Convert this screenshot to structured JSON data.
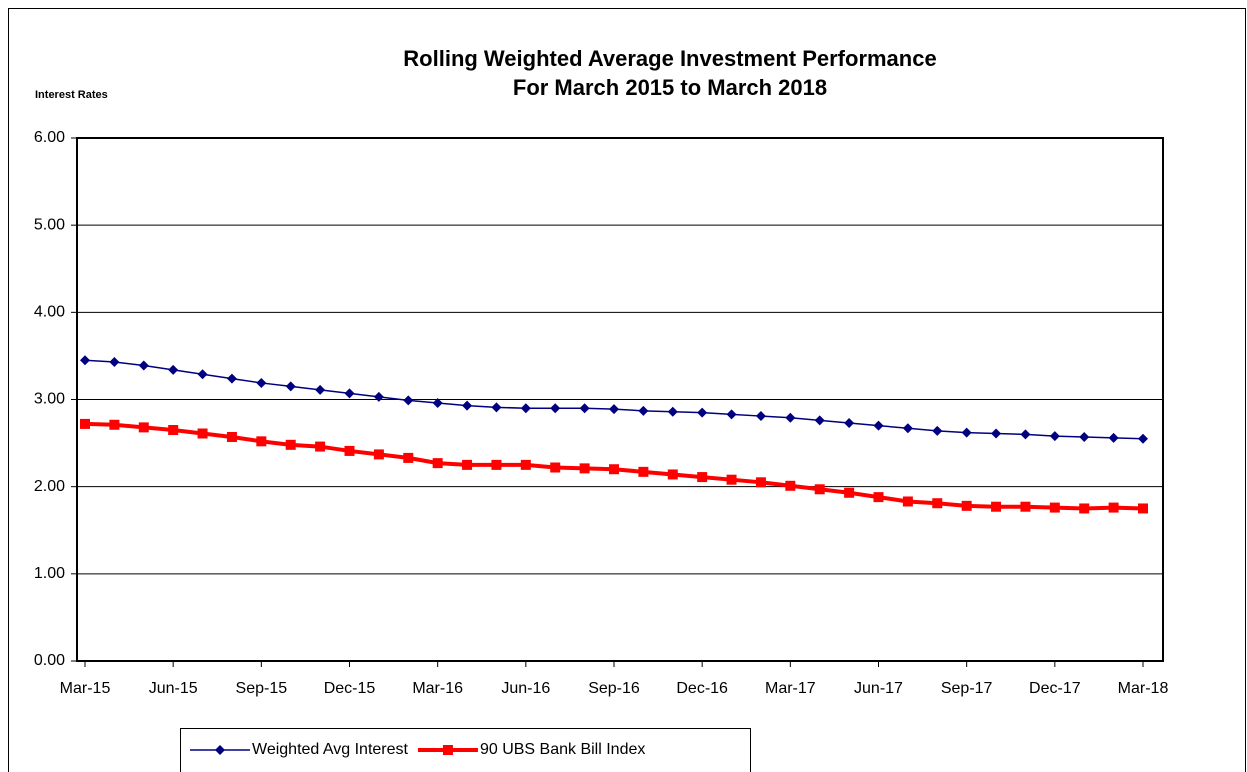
{
  "chart_data": {
    "type": "line",
    "title": "Rolling Weighted Average Investment Performance",
    "subtitle": "For March 2015 to March 2018",
    "y_label": "Interest Rates",
    "categories": [
      "Mar-15",
      null,
      null,
      "Jun-15",
      null,
      null,
      "Sep-15",
      null,
      null,
      "Dec-15",
      null,
      null,
      "Mar-16",
      null,
      null,
      "Jun-16",
      null,
      null,
      "Sep-16",
      null,
      null,
      "Dec-16",
      null,
      null,
      "Mar-17",
      null,
      null,
      "Jun-17",
      null,
      null,
      "Sep-17",
      null,
      null,
      "Dec-17",
      null,
      null,
      "Mar-18"
    ],
    "series": [
      {
        "name": "Weighted Avg Interest",
        "color": "#000080",
        "marker": "diamond",
        "values": [
          3.45,
          3.43,
          3.39,
          3.34,
          3.29,
          3.24,
          3.19,
          3.15,
          3.11,
          3.07,
          3.03,
          2.99,
          2.96,
          2.93,
          2.91,
          2.9,
          2.9,
          2.9,
          2.89,
          2.87,
          2.86,
          2.85,
          2.83,
          2.81,
          2.79,
          2.76,
          2.73,
          2.7,
          2.67,
          2.64,
          2.62,
          2.61,
          2.6,
          2.58,
          2.57,
          2.56,
          2.55
        ]
      },
      {
        "name": "90 UBS Bank Bill Index",
        "color": "#ff0000",
        "marker": "square",
        "values": [
          2.72,
          2.71,
          2.68,
          2.65,
          2.61,
          2.57,
          2.52,
          2.48,
          2.46,
          2.41,
          2.37,
          2.33,
          2.27,
          2.25,
          2.25,
          2.25,
          2.22,
          2.21,
          2.2,
          2.17,
          2.14,
          2.11,
          2.08,
          2.05,
          2.01,
          1.97,
          1.93,
          1.88,
          1.83,
          1.81,
          1.78,
          1.77,
          1.77,
          1.76,
          1.75,
          1.76,
          1.75
        ]
      }
    ],
    "ylim": [
      0,
      6
    ],
    "yticks": [
      {
        "value": 0,
        "label": "0.00"
      },
      {
        "value": 1,
        "label": "1.00"
      },
      {
        "value": 2,
        "label": "2.00"
      },
      {
        "value": 3,
        "label": "3.00"
      },
      {
        "value": 4,
        "label": "4.00"
      },
      {
        "value": 5,
        "label": "5.00"
      },
      {
        "value": 6,
        "label": "6.00"
      }
    ],
    "grid": true,
    "legend": "bottom"
  }
}
